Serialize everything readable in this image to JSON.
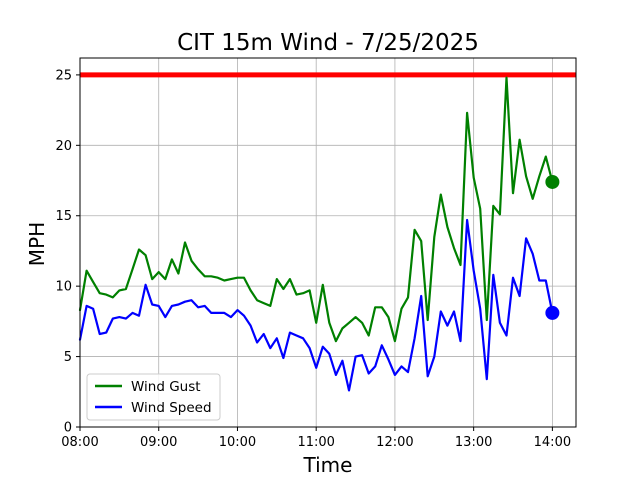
{
  "chart_data": {
    "type": "line",
    "title": "CIT 15m Wind - 7/25/2025",
    "xlabel": "Time",
    "ylabel": "MPH",
    "x_tick_labels": [
      "08:00",
      "09:00",
      "10:00",
      "11:00",
      "12:00",
      "13:00",
      "14:00"
    ],
    "y_ticks": [
      0,
      5,
      10,
      15,
      20,
      25
    ],
    "xlim": [
      "08:00",
      "14:18"
    ],
    "ylim": [
      0,
      26.2
    ],
    "grid": true,
    "legend_position": "lower-left",
    "threshold": {
      "value": 25,
      "color": "#ff0000"
    },
    "x": [
      "08:00",
      "08:05",
      "08:10",
      "08:15",
      "08:20",
      "08:25",
      "08:30",
      "08:35",
      "08:40",
      "08:45",
      "08:50",
      "08:55",
      "09:00",
      "09:05",
      "09:10",
      "09:15",
      "09:20",
      "09:25",
      "09:30",
      "09:35",
      "09:40",
      "09:45",
      "09:50",
      "09:55",
      "10:00",
      "10:05",
      "10:10",
      "10:15",
      "10:20",
      "10:25",
      "10:30",
      "10:35",
      "10:40",
      "10:45",
      "10:50",
      "10:55",
      "11:00",
      "11:05",
      "11:10",
      "11:15",
      "11:20",
      "11:25",
      "11:30",
      "11:35",
      "11:40",
      "11:45",
      "11:50",
      "11:55",
      "12:00",
      "12:05",
      "12:10",
      "12:15",
      "12:20",
      "12:25",
      "12:30",
      "12:35",
      "12:40",
      "12:45",
      "12:50",
      "12:55",
      "13:00",
      "13:05",
      "13:10",
      "13:15",
      "13:20",
      "13:25",
      "13:30",
      "13:35",
      "13:40",
      "13:45",
      "13:50",
      "13:55",
      "14:00"
    ],
    "series": [
      {
        "name": "Wind Gust",
        "color": "#008000",
        "values": [
          8.3,
          11.1,
          10.3,
          9.5,
          9.4,
          9.2,
          9.7,
          9.8,
          11.2,
          12.6,
          12.2,
          10.5,
          11.0,
          10.5,
          11.9,
          10.9,
          13.1,
          11.8,
          11.2,
          10.7,
          10.7,
          10.6,
          10.4,
          10.5,
          10.6,
          10.6,
          9.7,
          9.0,
          8.8,
          8.6,
          10.5,
          9.8,
          10.5,
          9.4,
          9.5,
          9.7,
          7.4,
          10.1,
          7.4,
          6.1,
          7.0,
          7.4,
          7.8,
          7.4,
          6.5,
          8.5,
          8.5,
          7.8,
          6.1,
          8.4,
          9.2,
          14.0,
          13.2,
          7.6,
          13.5,
          16.5,
          14.2,
          12.7,
          11.5,
          22.3,
          17.7,
          15.5,
          7.6,
          15.7,
          15.1,
          24.8,
          16.6,
          20.4,
          17.8,
          16.2,
          17.8,
          19.2,
          17.4
        ],
        "end_marker": 17.4
      },
      {
        "name": "Wind Speed",
        "color": "#0000ff",
        "values": [
          6.2,
          8.6,
          8.4,
          6.6,
          6.7,
          7.7,
          7.8,
          7.7,
          8.1,
          7.9,
          10.1,
          8.7,
          8.6,
          7.8,
          8.6,
          8.7,
          8.9,
          9.0,
          8.5,
          8.6,
          8.1,
          8.1,
          8.1,
          7.8,
          8.3,
          7.9,
          7.2,
          6.0,
          6.6,
          5.6,
          6.3,
          4.9,
          6.7,
          6.5,
          6.3,
          5.6,
          4.2,
          5.7,
          5.2,
          3.7,
          4.7,
          2.6,
          5.0,
          5.1,
          3.8,
          4.3,
          5.8,
          4.8,
          3.7,
          4.3,
          3.9,
          6.3,
          9.3,
          3.6,
          5.0,
          8.2,
          7.2,
          8.2,
          6.1,
          14.7,
          11.1,
          8.4,
          3.4,
          10.8,
          7.4,
          6.5,
          10.6,
          9.3,
          13.4,
          12.3,
          10.4,
          10.4,
          8.1
        ],
        "end_marker": 8.1
      }
    ]
  }
}
